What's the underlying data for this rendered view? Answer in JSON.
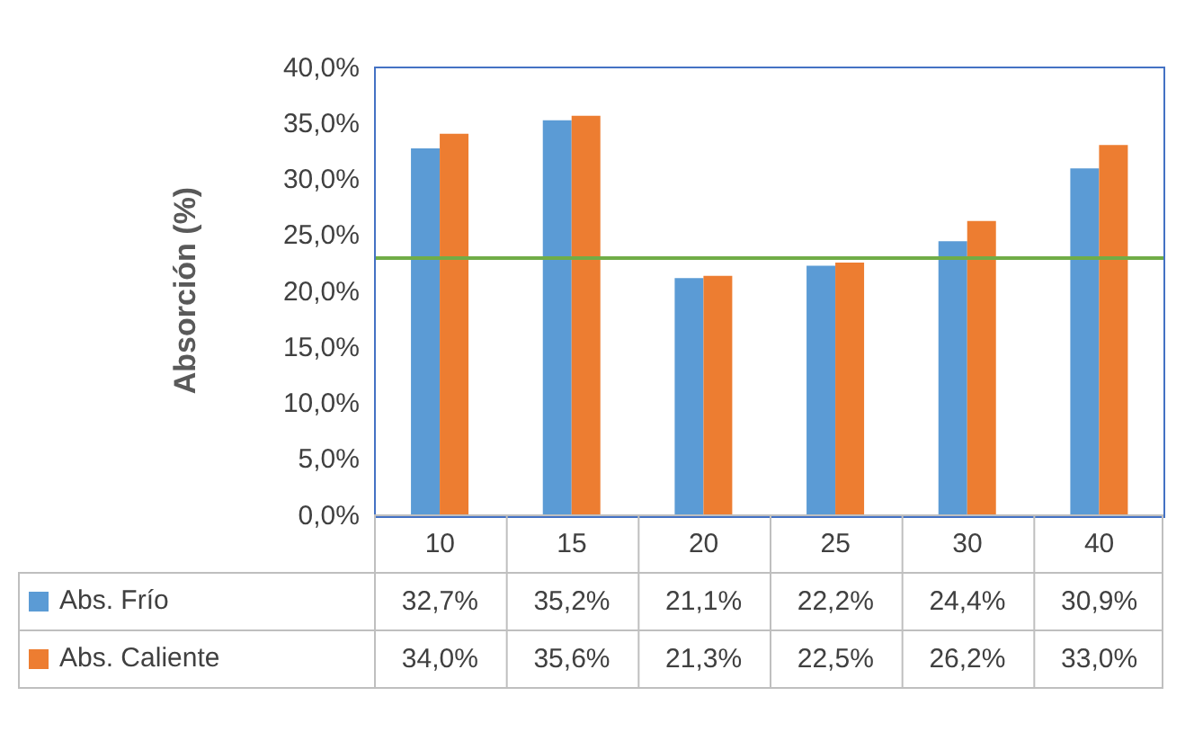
{
  "chart_data": {
    "type": "bar",
    "ylabel": "Absorción (%)",
    "categories": [
      "10",
      "15",
      "20",
      "25",
      "30",
      "40"
    ],
    "series": [
      {
        "name": "Abs. Frío",
        "color": "#5b9bd5",
        "values": [
          32.7,
          35.2,
          21.1,
          22.2,
          24.4,
          30.9
        ],
        "value_labels": [
          "32,7%",
          "35,2%",
          "21,1%",
          "22,2%",
          "24,4%",
          "30,9%"
        ]
      },
      {
        "name": "Abs. Caliente",
        "color": "#ed7d31",
        "values": [
          34.0,
          35.6,
          21.3,
          22.5,
          26.2,
          33.0
        ],
        "value_labels": [
          "34,0%",
          "35,6%",
          "21,3%",
          "22,5%",
          "26,2%",
          "33,0%"
        ]
      }
    ],
    "ylim": [
      0,
      40
    ],
    "yticks": [
      {
        "value": 0,
        "label": "0,0%"
      },
      {
        "value": 5,
        "label": "5,0%"
      },
      {
        "value": 10,
        "label": "10,0%"
      },
      {
        "value": 15,
        "label": "15,0%"
      },
      {
        "value": 20,
        "label": "20,0%"
      },
      {
        "value": 25,
        "label": "25,0%"
      },
      {
        "value": 30,
        "label": "30,0%"
      },
      {
        "value": 35,
        "label": "35,0%"
      },
      {
        "value": 40,
        "label": "40,0%"
      }
    ],
    "ref_lines": [
      {
        "axis": "y",
        "value": 22.9,
        "color": "#70ad47"
      }
    ],
    "grid": false,
    "legend": "bottom"
  }
}
